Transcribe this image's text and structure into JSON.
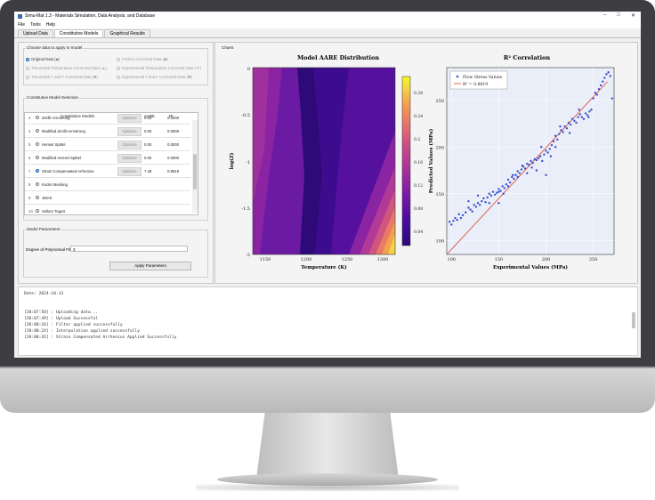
{
  "window": {
    "title": "Simu-Mat 1.3 - Materials Simulation, Data Analysis, and Database",
    "controls": [
      "–",
      "□",
      "✕"
    ]
  },
  "menu": [
    "File",
    "Tools",
    "Help"
  ],
  "tabs": [
    "Upload Data",
    "Constitutive Models",
    "Graphical Results"
  ],
  "data_choice": {
    "title": "Choose data to apply to model",
    "options": [
      {
        "label": "Original Data (●)",
        "checked": true,
        "enabled": true
      },
      {
        "label": "Friction Corrected Data (◆)",
        "checked": false,
        "enabled": false
      },
      {
        "label": "Theoretical Temperature Corrected Data (▲)",
        "checked": false,
        "enabled": false
      },
      {
        "label": "Experimental Temperature Corrected Data (▼)",
        "checked": false,
        "enabled": false
      },
      {
        "label": "Theoretical T and F Corrected Data (✖)",
        "checked": false,
        "enabled": false
      },
      {
        "label": "Experimental T and F Corrected Data (✱)",
        "checked": false,
        "enabled": false
      }
    ]
  },
  "model_selection": {
    "title": "Constitutive Model Selection",
    "columns": [
      "Constitutive Models",
      "AARE",
      "R²"
    ],
    "rows": [
      {
        "num": "3",
        "name": "Zerilli-Armstrong",
        "button": "Optimize",
        "aare": "0.00",
        "r2": "0.0000",
        "checked": false
      },
      {
        "num": "4",
        "name": "Modified Zerilli-Armstrong",
        "button": "Optimize",
        "aare": "0.00",
        "r2": "0.0000",
        "checked": false
      },
      {
        "num": "5",
        "name": "Hensel Spittel",
        "button": "Optimize",
        "aare": "0.00",
        "r2": "0.0000",
        "checked": false
      },
      {
        "num": "6",
        "name": "Modified Hensel Spittel",
        "button": "Optimize",
        "aare": "0.00",
        "r2": "0.0000",
        "checked": false
      },
      {
        "num": "7",
        "name": "Strain Compensated Arrhenius",
        "button": "Optimize",
        "aare": "7.48",
        "r2": "0.8819",
        "checked": true
      },
      {
        "num": "8",
        "name": "Kocks Mecking",
        "button": "",
        "aare": "",
        "r2": "",
        "checked": false
      },
      {
        "num": "9",
        "name": "JMAK",
        "button": "",
        "aare": "",
        "r2": "",
        "checked": false
      },
      {
        "num": "10",
        "name": "Sellars Tegart",
        "button": "",
        "aare": "",
        "r2": "",
        "checked": false
      }
    ]
  },
  "params": {
    "title": "Model Parameters",
    "degree_label": "Degree of Polynomial Fit",
    "degree_value": "3",
    "apply_label": "Apply Parameters"
  },
  "charts_label": "Charts",
  "chart_data": [
    {
      "type": "heatmap",
      "title": "Model AARE Distribution",
      "xlabel": "Temperature (K)",
      "ylabel": "log(Z)",
      "xticks": [
        "1150",
        "1200",
        "1250",
        "1300"
      ],
      "yticks": [
        "0",
        "-0.5",
        "-1",
        "-1.5",
        "-2"
      ],
      "colorbar_ticks": [
        "0.28",
        "0.24",
        "0.2",
        "0.16",
        "0.12",
        "0.08",
        "0.04"
      ],
      "colormap": [
        "#2d0a78",
        "#4a0c9e",
        "#7a1aa6",
        "#a8329c",
        "#cc4f84",
        "#e6746a",
        "#f4a14d",
        "#f6d344",
        "#f0f921"
      ]
    },
    {
      "type": "scatter",
      "title": "R² Correlation",
      "xlabel": "Experimental Values (MPa)",
      "ylabel": "Predicted Values (MPa)",
      "xlim": [
        95,
        272
      ],
      "ylim": [
        85,
        285
      ],
      "xticks": [
        "100",
        "150",
        "200",
        "250"
      ],
      "yticks": [
        "100",
        "150",
        "200",
        "250"
      ],
      "legend": [
        "Flow Stress Values",
        "R² = 0.8819"
      ],
      "legend_position": "top-left",
      "point_color": "#3b4fd1",
      "line_color": "#e2533f",
      "fit_line": [
        [
          95,
          85
        ],
        [
          265,
          270
        ]
      ],
      "points": [
        [
          98,
          120
        ],
        [
          100,
          117
        ],
        [
          102,
          121
        ],
        [
          104,
          124
        ],
        [
          106,
          122
        ],
        [
          108,
          128
        ],
        [
          110,
          124
        ],
        [
          112,
          127
        ],
        [
          115,
          130
        ],
        [
          118,
          135
        ],
        [
          120,
          133
        ],
        [
          122,
          131
        ],
        [
          124,
          138
        ],
        [
          126,
          136
        ],
        [
          128,
          140
        ],
        [
          130,
          138
        ],
        [
          132,
          142
        ],
        [
          134,
          145
        ],
        [
          136,
          141
        ],
        [
          138,
          146
        ],
        [
          140,
          150
        ],
        [
          142,
          148
        ],
        [
          144,
          152
        ],
        [
          146,
          149
        ],
        [
          148,
          151
        ],
        [
          150,
          155
        ],
        [
          152,
          153
        ],
        [
          154,
          158
        ],
        [
          156,
          156
        ],
        [
          158,
          160
        ],
        [
          160,
          165
        ],
        [
          162,
          162
        ],
        [
          164,
          168
        ],
        [
          166,
          166
        ],
        [
          168,
          170
        ],
        [
          170,
          174
        ],
        [
          172,
          172
        ],
        [
          174,
          176
        ],
        [
          176,
          179
        ],
        [
          178,
          177
        ],
        [
          180,
          182
        ],
        [
          182,
          181
        ],
        [
          184,
          185
        ],
        [
          186,
          183
        ],
        [
          188,
          187
        ],
        [
          190,
          186
        ],
        [
          192,
          188
        ],
        [
          194,
          190
        ],
        [
          196,
          185
        ],
        [
          198,
          192
        ],
        [
          200,
          196
        ],
        [
          202,
          194
        ],
        [
          204,
          198
        ],
        [
          206,
          202
        ],
        [
          208,
          206
        ],
        [
          210,
          212
        ],
        [
          212,
          208
        ],
        [
          214,
          214
        ],
        [
          216,
          218
        ],
        [
          218,
          216
        ],
        [
          220,
          222
        ],
        [
          222,
          220
        ],
        [
          224,
          226
        ],
        [
          226,
          224
        ],
        [
          228,
          230
        ],
        [
          230,
          228
        ],
        [
          232,
          226
        ],
        [
          234,
          232
        ],
        [
          236,
          235
        ],
        [
          238,
          232
        ],
        [
          240,
          230
        ],
        [
          242,
          236
        ],
        [
          244,
          234
        ],
        [
          246,
          238
        ],
        [
          248,
          240
        ],
        [
          250,
          252
        ],
        [
          252,
          258
        ],
        [
          254,
          256
        ],
        [
          256,
          262
        ],
        [
          258,
          266
        ],
        [
          260,
          270
        ],
        [
          262,
          274
        ],
        [
          264,
          278
        ],
        [
          266,
          280
        ],
        [
          268,
          276
        ],
        [
          270,
          252
        ],
        [
          140,
          140
        ],
        [
          150,
          152
        ],
        [
          155,
          150
        ],
        [
          160,
          158
        ],
        [
          165,
          170
        ],
        [
          170,
          168
        ],
        [
          175,
          180
        ],
        [
          185,
          178
        ],
        [
          195,
          200
        ],
        [
          205,
          190
        ],
        [
          215,
          222
        ],
        [
          225,
          215
        ],
        [
          235,
          240
        ],
        [
          245,
          232
        ],
        [
          200,
          170
        ],
        [
          190,
          175
        ],
        [
          180,
          172
        ],
        [
          210,
          200
        ],
        [
          150,
          140
        ],
        [
          128,
          148
        ],
        [
          118,
          142
        ]
      ]
    }
  ],
  "console": {
    "date": "Date: 2024-10-13",
    "lines": [
      "[20:07:58] : Uploading data...",
      "[20:07:49] : Upload Successful",
      "[20:08:16] : Filter applied successfully",
      "[20:08:24] : Interpolation applied successfully",
      "[20:08:42] : Strain Compensated Arrhenius Applied Successfully"
    ]
  }
}
